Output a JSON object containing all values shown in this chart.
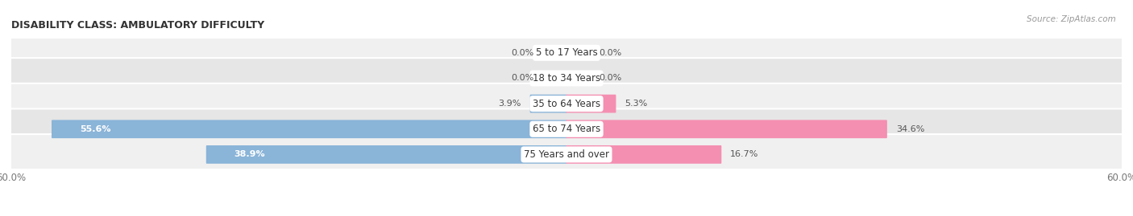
{
  "title": "DISABILITY CLASS: AMBULATORY DIFFICULTY",
  "source": "Source: ZipAtlas.com",
  "categories": [
    "5 to 17 Years",
    "18 to 34 Years",
    "35 to 64 Years",
    "65 to 74 Years",
    "75 Years and over"
  ],
  "male_values": [
    0.0,
    0.0,
    3.9,
    55.6,
    38.9
  ],
  "female_values": [
    0.0,
    0.0,
    5.3,
    34.6,
    16.7
  ],
  "max_val": 60.0,
  "male_color": "#8ab4d8",
  "female_color": "#f48fb1",
  "row_bg_colors": [
    "#f0f0f0",
    "#e6e6e6"
  ],
  "label_color": "#555555",
  "white_label_color": "#ffffff",
  "title_color": "#333333",
  "axis_label_color": "#777777",
  "figsize": [
    14.06,
    2.69
  ],
  "dpi": 100
}
